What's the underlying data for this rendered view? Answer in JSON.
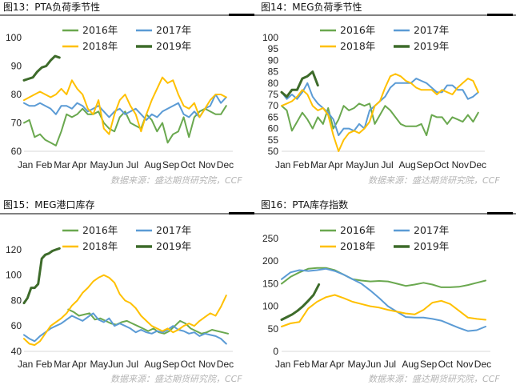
{
  "colors": {
    "s2016": "#6aa84f",
    "s2017": "#5b9bd5",
    "s2018": "#ffc000",
    "s2019": "#3d6b2a",
    "rule": "#000000"
  },
  "months": [
    "Jan",
    "Feb",
    "Mar",
    "Apr",
    "May",
    "Jun",
    "Jul",
    "Aug",
    "Sep",
    "Oct",
    "Nov",
    "Dec"
  ],
  "chart_data": [
    {
      "id": "c1",
      "type": "line",
      "title": "图13：PTA负荷季节性",
      "source": "数据来源：盛达期货研究院，CCF",
      "ylim": [
        60,
        100
      ],
      "yticks": [
        60,
        70,
        80,
        90,
        100
      ],
      "categories": [
        "Jan",
        "Feb",
        "Mar",
        "Apr",
        "May",
        "Jun",
        "Jul",
        "Aug",
        "Sep",
        "Oct",
        "Nov",
        "Dec"
      ],
      "x_unit": "month",
      "series": [
        {
          "name": "2016年",
          "color": "#6aa84f",
          "width": 2,
          "x": [
            0,
            0.3,
            0.6,
            0.9,
            1.2,
            1.5,
            1.8,
            2.1,
            2.4,
            2.7,
            3.0,
            3.3,
            3.6,
            3.9,
            4.2,
            4.5,
            4.8,
            5.1,
            5.4,
            5.7,
            6.0,
            6.3,
            6.6,
            6.9,
            7.2,
            7.5,
            7.8,
            8.1,
            8.4,
            8.7,
            9.0,
            9.3,
            9.6,
            9.9,
            10.2,
            10.5,
            10.8,
            11.1,
            11.4
          ],
          "y": [
            70,
            71,
            65,
            66,
            64,
            63,
            62,
            67,
            73,
            72,
            73,
            75,
            73,
            73,
            74,
            70,
            68,
            67,
            72,
            74,
            70,
            69,
            68,
            73,
            71,
            67,
            70,
            63,
            66,
            67,
            72,
            65,
            72,
            74,
            75,
            74,
            73,
            73,
            76
          ]
        },
        {
          "name": "2017年",
          "color": "#5b9bd5",
          "width": 2,
          "x": [
            0,
            0.3,
            0.6,
            0.9,
            1.2,
            1.5,
            1.8,
            2.1,
            2.4,
            2.7,
            3.0,
            3.3,
            3.6,
            3.9,
            4.2,
            4.5,
            4.8,
            5.1,
            5.4,
            5.7,
            6.0,
            6.3,
            6.6,
            6.9,
            7.2,
            7.5,
            7.8,
            8.1,
            8.4,
            8.7,
            9.0,
            9.3,
            9.6,
            9.9,
            10.2,
            10.5,
            10.8,
            11.1,
            11.4
          ],
          "y": [
            77,
            76,
            76,
            77,
            76,
            75,
            73,
            76,
            76,
            75,
            77,
            76,
            74,
            75,
            76,
            74,
            72,
            74,
            75,
            73,
            74,
            75,
            73,
            71,
            73,
            72,
            74,
            75,
            76,
            77,
            73,
            72,
            74,
            72,
            75,
            76,
            80,
            77,
            79
          ]
        },
        {
          "name": "2018年",
          "color": "#ffc000",
          "width": 2,
          "x": [
            0,
            0.3,
            0.6,
            0.9,
            1.2,
            1.5,
            1.8,
            2.1,
            2.4,
            2.7,
            3.0,
            3.3,
            3.6,
            3.9,
            4.2,
            4.5,
            4.8,
            5.1,
            5.4,
            5.7,
            6.0,
            6.3,
            6.6,
            6.9,
            7.2,
            7.5,
            7.8,
            8.1,
            8.4,
            8.7,
            9.0,
            9.3,
            9.6,
            9.9,
            10.2,
            10.5,
            10.8,
            11.1,
            11.4
          ],
          "y": [
            78,
            79,
            80,
            81,
            80,
            79,
            80,
            82,
            80,
            85,
            82,
            80,
            75,
            73,
            78,
            68,
            66,
            73,
            78,
            80,
            76,
            73,
            67,
            73,
            78,
            82,
            86,
            84,
            85,
            80,
            76,
            75,
            77,
            72,
            75,
            78,
            80,
            80,
            79
          ]
        },
        {
          "name": "2019年",
          "color": "#3d6b2a",
          "width": 3,
          "x": [
            0,
            0.25,
            0.5,
            0.75,
            1.0,
            1.25,
            1.5,
            1.75,
            2.0
          ],
          "y": [
            85,
            85.5,
            86,
            88,
            89.5,
            90,
            92,
            93.5,
            93
          ]
        }
      ]
    },
    {
      "id": "c2",
      "type": "line",
      "title": "图14：MEG负荷季节性",
      "source": "数据来源：盛达期货研究院，CCF",
      "ylim": [
        50,
        100
      ],
      "yticks": [
        50,
        55,
        60,
        65,
        70,
        75,
        80,
        85,
        90,
        95,
        100
      ],
      "categories": [
        "Jan",
        "Feb",
        "Mar",
        "Apr",
        "May",
        "Jun",
        "Jul",
        "Aug",
        "Sep",
        "Oct",
        "Nov",
        "Dec"
      ],
      "x_unit": "month",
      "series": [
        {
          "name": "2016年",
          "color": "#6aa84f",
          "width": 2,
          "x": [
            0,
            0.3,
            0.6,
            0.9,
            1.2,
            1.5,
            1.8,
            2.1,
            2.4,
            2.7,
            3.0,
            3.3,
            3.6,
            3.9,
            4.2,
            4.5,
            4.8,
            5.1,
            5.4,
            5.7,
            6.0,
            6.3,
            6.6,
            6.9,
            7.2,
            7.5,
            7.8,
            8.1,
            8.4,
            8.7,
            9.0,
            9.3,
            9.6,
            9.9,
            10.2,
            10.5,
            10.8,
            11.1,
            11.4
          ],
          "y": [
            70,
            68,
            59,
            63,
            67,
            64,
            60,
            65,
            62,
            69,
            60,
            64,
            70,
            68,
            69,
            71,
            70,
            71,
            62,
            66,
            70,
            68,
            65,
            62,
            61,
            61,
            61,
            62,
            57,
            66,
            65,
            65,
            62,
            65,
            64,
            63,
            66,
            63,
            67
          ]
        },
        {
          "name": "2017年",
          "color": "#5b9bd5",
          "width": 2,
          "x": [
            0,
            0.3,
            0.6,
            0.9,
            1.2,
            1.5,
            1.8,
            2.1,
            2.4,
            2.7,
            3.0,
            3.3,
            3.6,
            3.9,
            4.2,
            4.5,
            4.8,
            5.1,
            5.4,
            5.7,
            6.0,
            6.3,
            6.6,
            6.9,
            7.2,
            7.5,
            7.8,
            8.1,
            8.4,
            8.7,
            9.0,
            9.3,
            9.6,
            9.9,
            10.2,
            10.5,
            10.8,
            11.1,
            11.4
          ],
          "y": [
            76,
            73,
            75,
            73,
            76,
            80,
            74,
            71,
            69,
            67,
            64,
            57,
            60,
            60,
            59,
            62,
            60,
            68,
            70,
            72,
            74,
            78,
            80,
            80,
            80,
            80,
            82,
            81,
            80,
            78,
            76,
            76,
            79,
            79,
            77,
            77,
            73,
            74,
            76
          ]
        },
        {
          "name": "2018年",
          "color": "#ffc000",
          "width": 2,
          "x": [
            0,
            0.3,
            0.6,
            0.9,
            1.2,
            1.5,
            1.8,
            2.1,
            2.4,
            2.7,
            3.0,
            3.3,
            3.6,
            3.9,
            4.2,
            4.5,
            4.8,
            5.1,
            5.4,
            5.7,
            6.0,
            6.3,
            6.6,
            6.9,
            7.2,
            7.5,
            7.8,
            8.1,
            8.4,
            8.7,
            9.0,
            9.3,
            9.6,
            9.9,
            10.2,
            10.5,
            10.8,
            11.1,
            11.4
          ],
          "y": [
            70,
            71,
            72,
            74,
            77,
            75,
            70,
            68,
            69,
            66,
            57,
            50,
            55,
            58,
            59,
            58,
            60,
            63,
            70,
            72,
            78,
            83,
            84,
            83,
            81,
            80,
            78,
            77,
            77,
            77,
            75,
            77,
            76,
            75,
            78,
            80,
            82,
            81,
            76
          ]
        },
        {
          "name": "2019年",
          "color": "#3d6b2a",
          "width": 3,
          "x": [
            0,
            0.3,
            0.6,
            0.9,
            1.2,
            1.5,
            1.8,
            2.1
          ],
          "y": [
            76,
            74,
            77,
            77,
            82,
            83,
            85,
            79
          ]
        }
      ]
    },
    {
      "id": "c3",
      "type": "line",
      "title": "图15：MEG港口库存",
      "source": "数据来源：盛达期货研究院，CCF",
      "ylim": [
        40,
        125
      ],
      "yticks": [
        40,
        60,
        80,
        100,
        120
      ],
      "categories": [
        "Jan",
        "Feb",
        "Mar",
        "Apr",
        "May",
        "Jun",
        "Jul",
        "Aug",
        "Sep",
        "Oct",
        "Nov",
        "Dec"
      ],
      "x_unit": "month",
      "series": [
        {
          "name": "2016年",
          "color": "#6aa84f",
          "width": 2,
          "x": [
            2.5,
            2.8,
            3.1,
            3.4,
            3.7,
            4.0,
            4.3,
            4.6,
            4.9,
            5.2,
            5.5,
            5.8,
            6.1,
            6.4,
            6.7,
            7.0,
            7.3,
            7.6,
            7.9,
            8.2,
            8.5,
            8.8,
            9.1,
            9.4,
            9.7,
            10.0,
            10.3,
            10.6,
            10.9,
            11.2,
            11.5
          ],
          "y": [
            73,
            71,
            68,
            69,
            70,
            65,
            66,
            64,
            62,
            61,
            63,
            64,
            62,
            60,
            58,
            56,
            58,
            55,
            54,
            56,
            60,
            64,
            62,
            58,
            56,
            54,
            55,
            57,
            56,
            55,
            54
          ]
        },
        {
          "name": "2017年",
          "color": "#5b9bd5",
          "width": 2,
          "x": [
            0,
            0.3,
            0.6,
            0.9,
            1.2,
            1.5,
            1.8,
            2.1,
            2.4,
            2.7,
            3.0,
            3.3,
            3.6,
            3.9,
            4.2,
            4.5,
            4.8,
            5.1,
            5.4,
            5.7,
            6.0,
            6.3,
            6.6,
            6.9,
            7.2,
            7.5,
            7.8,
            8.1,
            8.4,
            8.7,
            9.0,
            9.3,
            9.6,
            9.9,
            10.2,
            10.5,
            10.8,
            11.1,
            11.4
          ],
          "y": [
            53,
            50,
            48,
            52,
            55,
            58,
            60,
            62,
            65,
            68,
            66,
            64,
            67,
            70,
            65,
            63,
            66,
            60,
            62,
            60,
            58,
            55,
            57,
            55,
            54,
            56,
            55,
            57,
            60,
            57,
            56,
            54,
            55,
            52,
            54,
            53,
            52,
            50,
            46
          ]
        },
        {
          "name": "2018年",
          "color": "#ffc000",
          "width": 2,
          "x": [
            0,
            0.3,
            0.6,
            0.9,
            1.2,
            1.5,
            1.8,
            2.1,
            2.4,
            2.7,
            3.0,
            3.3,
            3.6,
            3.9,
            4.2,
            4.5,
            4.8,
            5.1,
            5.4,
            5.7,
            6.0,
            6.3,
            6.6,
            6.9,
            7.2,
            7.5,
            7.8,
            8.1,
            8.4,
            8.7,
            9.0,
            9.3,
            9.6,
            9.9,
            10.2,
            10.5,
            10.8,
            11.1,
            11.4
          ],
          "y": [
            50,
            46,
            45,
            48,
            54,
            60,
            63,
            66,
            70,
            76,
            80,
            86,
            90,
            95,
            98,
            100,
            98,
            94,
            85,
            80,
            78,
            74,
            68,
            64,
            60,
            58,
            56,
            58,
            55,
            57,
            60,
            62,
            60,
            64,
            67,
            70,
            68,
            75,
            84
          ]
        },
        {
          "name": "2019年",
          "color": "#3d6b2a",
          "width": 3,
          "x": [
            0,
            0.2,
            0.4,
            0.6,
            0.8,
            1.0,
            1.2,
            1.4,
            1.6,
            1.8,
            2.0
          ],
          "y": [
            78,
            82,
            90,
            90,
            93,
            113,
            116,
            117,
            119,
            120,
            121
          ]
        }
      ]
    },
    {
      "id": "c4",
      "type": "line",
      "title": "图16：PTA库存指数",
      "source": "数据来源：盛达期货研究院，CCF",
      "ylim": [
        0,
        250
      ],
      "yticks": [
        0,
        50,
        100,
        150,
        200,
        250
      ],
      "categories": [
        "Jan",
        "Feb",
        "Mar",
        "Apr",
        "May",
        "Jun",
        "Jul",
        "Aug",
        "Sep",
        "Oct",
        "Nov",
        "Dec"
      ],
      "x_unit": "month",
      "series": [
        {
          "name": "2016年",
          "color": "#6aa84f",
          "width": 2,
          "x": [
            0,
            0.5,
            1.0,
            1.5,
            2.0,
            2.5,
            3.0,
            3.5,
            4.0,
            4.5,
            5.0,
            5.5,
            6.0,
            6.5,
            7.0,
            7.5,
            8.0,
            8.5,
            9.0,
            9.5,
            10.0,
            10.5,
            11.0,
            11.5
          ],
          "y": [
            150,
            165,
            175,
            183,
            185,
            185,
            180,
            170,
            160,
            157,
            155,
            156,
            155,
            150,
            145,
            148,
            152,
            148,
            142,
            142,
            143,
            147,
            152,
            157
          ]
        },
        {
          "name": "2017年",
          "color": "#5b9bd5",
          "width": 2,
          "x": [
            0,
            0.5,
            1.0,
            1.5,
            2.0,
            2.5,
            3.0,
            3.5,
            4.0,
            4.5,
            5.0,
            5.5,
            6.0,
            6.5,
            7.0,
            7.5,
            8.0,
            8.5,
            9.0,
            9.5,
            10.0,
            10.5,
            11.0,
            11.5
          ],
          "y": [
            160,
            175,
            180,
            178,
            180,
            183,
            178,
            170,
            160,
            150,
            135,
            118,
            100,
            88,
            76,
            75,
            75,
            72,
            68,
            60,
            52,
            45,
            47,
            55
          ]
        },
        {
          "name": "2018年",
          "color": "#ffc000",
          "width": 2,
          "x": [
            0,
            0.5,
            1.0,
            1.5,
            2.0,
            2.5,
            3.0,
            3.5,
            4.0,
            4.5,
            5.0,
            5.5,
            6.0,
            6.5,
            7.0,
            7.5,
            8.0,
            8.5,
            9.0,
            9.5,
            10.0,
            10.5,
            11.0,
            11.5
          ],
          "y": [
            55,
            62,
            65,
            95,
            110,
            120,
            125,
            118,
            110,
            105,
            100,
            97,
            92,
            88,
            84,
            82,
            92,
            108,
            112,
            105,
            90,
            75,
            72,
            70
          ]
        },
        {
          "name": "2019年",
          "color": "#3d6b2a",
          "width": 3,
          "x": [
            0,
            0.3,
            0.6,
            0.9,
            1.2,
            1.5,
            1.8,
            2.1
          ],
          "y": [
            70,
            76,
            82,
            90,
            100,
            112,
            125,
            148
          ]
        }
      ]
    }
  ]
}
